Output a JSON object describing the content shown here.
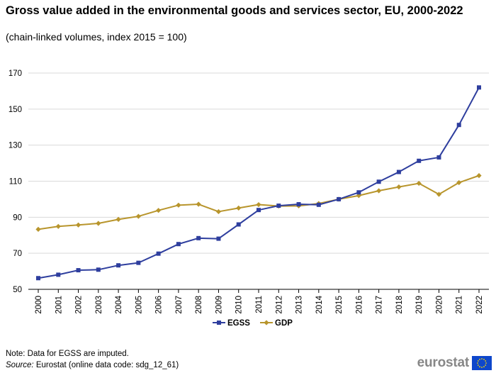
{
  "title": "Gross value added in the environmental goods and services sector, EU, 2000-2022",
  "subtitle": "(chain-linked  volumes,  index 2015 = 100)",
  "note": "Note: Data for EGSS are imputed.",
  "source_label": "Source:",
  "source_text": " Eurostat (online data code: sdg_12_61)",
  "brand": "eurostat",
  "colors": {
    "egss": "#2E3E9E",
    "gdp": "#B8952C",
    "grid": "#D9D9D9",
    "axis": "#000000"
  },
  "chart_data": {
    "type": "line",
    "x": [
      "2000",
      "2001",
      "2002",
      "2003",
      "2004",
      "2005",
      "2006",
      "2007",
      "2008",
      "2009",
      "2010",
      "2011",
      "2012",
      "2013",
      "2014",
      "2015",
      "2016",
      "2017",
      "2018",
      "2019",
      "2020",
      "2021",
      "2022"
    ],
    "series": [
      {
        "name": "EGSS",
        "marker": "square",
        "values": [
          56.2,
          58.1,
          60.6,
          60.9,
          63.3,
          64.7,
          69.8,
          75.1,
          78.4,
          78.1,
          86.0,
          94.0,
          96.4,
          97.2,
          96.9,
          100.0,
          103.8,
          109.7,
          115.1,
          121.3,
          123.2,
          141.2,
          162.0
        ]
      },
      {
        "name": "GDP",
        "marker": "diamond",
        "values": [
          83.3,
          84.9,
          85.7,
          86.6,
          88.8,
          90.5,
          93.8,
          96.7,
          97.2,
          93.1,
          95.1,
          97.0,
          96.2,
          96.3,
          97.6,
          100.0,
          102.0,
          104.7,
          106.8,
          108.8,
          102.7,
          109.2,
          113.1
        ]
      }
    ],
    "ylim": [
      50,
      170
    ],
    "yticks": [
      50,
      70,
      90,
      110,
      130,
      150,
      170
    ],
    "grid": true,
    "legend_position": "bottom-center"
  }
}
